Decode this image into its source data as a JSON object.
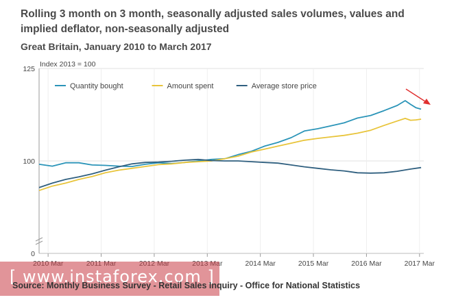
{
  "title": "Rolling 3 month on 3 month, seasonally adjusted sales volumes, values and implied deflator, non-seasonally adjusted",
  "subtitle": "Great Britain, January 2010 to March 2017",
  "source": "Source: Monthly Business Survey - Retail Sales Inquiry - Office for National Statistics",
  "watermark": "[ www.instaforex.com ]",
  "chart_data": {
    "type": "line",
    "ylabel": "Index 2013 = 100",
    "yticks": [
      0,
      100,
      125
    ],
    "ylim": [
      0,
      125
    ],
    "x_range": [
      2010.0,
      2017.25
    ],
    "x_ticks": [
      {
        "label": "2010 Mar",
        "x": 2010.17
      },
      {
        "label": "2011 Mar",
        "x": 2011.17
      },
      {
        "label": "2012 Mar",
        "x": 2012.17
      },
      {
        "label": "2013 Mar",
        "x": 2013.17
      },
      {
        "label": "2014 Mar",
        "x": 2014.17
      },
      {
        "label": "2015 Mar",
        "x": 2015.17
      },
      {
        "label": "2016 Mar",
        "x": 2016.17
      },
      {
        "label": "2017 Mar",
        "x": 2017.17
      }
    ],
    "legend_position": "top-left",
    "series": [
      {
        "name": "Quantity bought",
        "color": "#2a94b8",
        "points": [
          [
            2010.0,
            99.1
          ],
          [
            2010.25,
            98.6
          ],
          [
            2010.5,
            99.5
          ],
          [
            2010.75,
            99.5
          ],
          [
            2011.0,
            98.9
          ],
          [
            2011.25,
            98.8
          ],
          [
            2011.5,
            98.6
          ],
          [
            2011.75,
            98.5
          ],
          [
            2012.0,
            99.1
          ],
          [
            2012.25,
            99.5
          ],
          [
            2012.5,
            99.3
          ],
          [
            2012.75,
            99.6
          ],
          [
            2013.0,
            100.0
          ],
          [
            2013.25,
            100.4
          ],
          [
            2013.5,
            100.6
          ],
          [
            2013.75,
            101.7
          ],
          [
            2014.0,
            102.6
          ],
          [
            2014.25,
            104.0
          ],
          [
            2014.5,
            105.0
          ],
          [
            2014.75,
            106.3
          ],
          [
            2015.0,
            108.1
          ],
          [
            2015.25,
            108.7
          ],
          [
            2015.5,
            109.5
          ],
          [
            2015.75,
            110.3
          ],
          [
            2016.0,
            111.6
          ],
          [
            2016.25,
            112.3
          ],
          [
            2016.5,
            113.6
          ],
          [
            2016.75,
            115.0
          ],
          [
            2016.9,
            116.3
          ],
          [
            2017.0,
            115.3
          ],
          [
            2017.1,
            114.4
          ],
          [
            2017.2,
            114.0
          ]
        ]
      },
      {
        "name": "Amount spent",
        "color": "#e8c43a",
        "points": [
          [
            2010.0,
            92.0
          ],
          [
            2010.25,
            93.2
          ],
          [
            2010.5,
            94.0
          ],
          [
            2010.75,
            95.0
          ],
          [
            2011.0,
            95.8
          ],
          [
            2011.25,
            96.8
          ],
          [
            2011.5,
            97.5
          ],
          [
            2011.75,
            98.0
          ],
          [
            2012.0,
            98.5
          ],
          [
            2012.25,
            99.0
          ],
          [
            2012.5,
            99.2
          ],
          [
            2012.75,
            99.6
          ],
          [
            2013.0,
            99.8
          ],
          [
            2013.25,
            100.0
          ],
          [
            2013.5,
            100.6
          ],
          [
            2013.75,
            101.3
          ],
          [
            2014.0,
            102.4
          ],
          [
            2014.25,
            103.2
          ],
          [
            2014.5,
            104.0
          ],
          [
            2014.75,
            104.8
          ],
          [
            2015.0,
            105.6
          ],
          [
            2015.25,
            106.1
          ],
          [
            2015.5,
            106.5
          ],
          [
            2015.75,
            106.9
          ],
          [
            2016.0,
            107.5
          ],
          [
            2016.25,
            108.3
          ],
          [
            2016.5,
            109.6
          ],
          [
            2016.75,
            110.8
          ],
          [
            2016.9,
            111.5
          ],
          [
            2017.0,
            111.0
          ],
          [
            2017.1,
            111.1
          ],
          [
            2017.2,
            111.3
          ]
        ]
      },
      {
        "name": "Average store price",
        "color": "#2f5f7f",
        "points": [
          [
            2010.0,
            92.8
          ],
          [
            2010.25,
            94.0
          ],
          [
            2010.5,
            95.0
          ],
          [
            2010.75,
            95.7
          ],
          [
            2011.0,
            96.5
          ],
          [
            2011.25,
            97.5
          ],
          [
            2011.5,
            98.4
          ],
          [
            2011.75,
            99.2
          ],
          [
            2012.0,
            99.6
          ],
          [
            2012.25,
            99.7
          ],
          [
            2012.5,
            99.9
          ],
          [
            2012.75,
            100.2
          ],
          [
            2013.0,
            100.4
          ],
          [
            2013.25,
            100.1
          ],
          [
            2013.5,
            100.0
          ],
          [
            2013.75,
            100.0
          ],
          [
            2014.0,
            99.8
          ],
          [
            2014.25,
            99.6
          ],
          [
            2014.5,
            99.4
          ],
          [
            2014.75,
            98.9
          ],
          [
            2015.0,
            98.4
          ],
          [
            2015.25,
            98.0
          ],
          [
            2015.5,
            97.6
          ],
          [
            2015.75,
            97.3
          ],
          [
            2016.0,
            96.8
          ],
          [
            2016.25,
            96.7
          ],
          [
            2016.5,
            96.8
          ],
          [
            2016.75,
            97.2
          ],
          [
            2017.0,
            97.8
          ],
          [
            2017.2,
            98.2
          ]
        ]
      }
    ]
  }
}
